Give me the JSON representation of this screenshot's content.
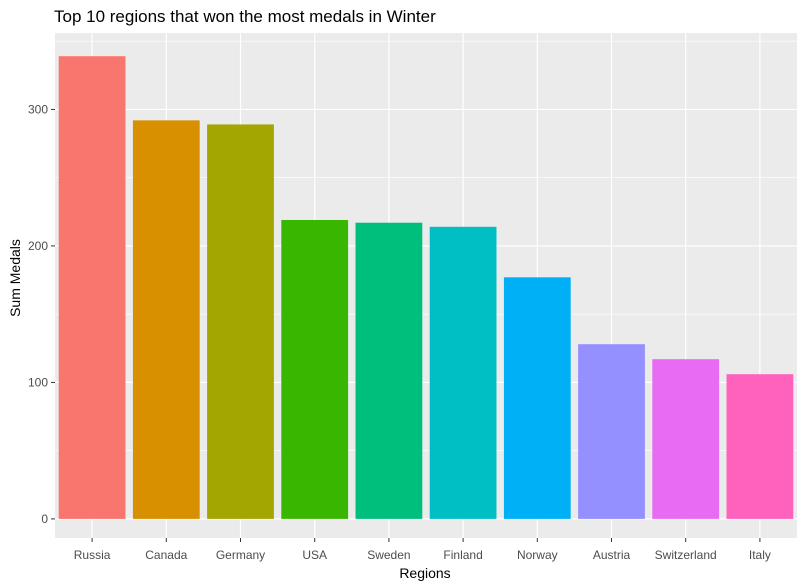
{
  "chart_data": {
    "type": "bar",
    "title": "Top 10 regions that won the most medals in Winter",
    "xlabel": "Regions",
    "ylabel": "Sum Medals",
    "categories": [
      "Russia",
      "Canada",
      "Germany",
      "USA",
      "Sweden",
      "Finland",
      "Norway",
      "Austria",
      "Switzerland",
      "Italy"
    ],
    "values": [
      339,
      292,
      289,
      219,
      217,
      214,
      177,
      128,
      117,
      106
    ],
    "colors": [
      "#F8766D",
      "#D89000",
      "#A3A500",
      "#39B600",
      "#00BF7D",
      "#00BFC4",
      "#00B0F6",
      "#9590FF",
      "#E76BF3",
      "#FF62BC"
    ],
    "ylim": [
      -14,
      356
    ],
    "yticks": [
      0,
      100,
      200,
      300
    ],
    "panel_background": "#EBEBEB",
    "grid_color": "#FFFFFF",
    "grid": true,
    "legend": "none"
  }
}
